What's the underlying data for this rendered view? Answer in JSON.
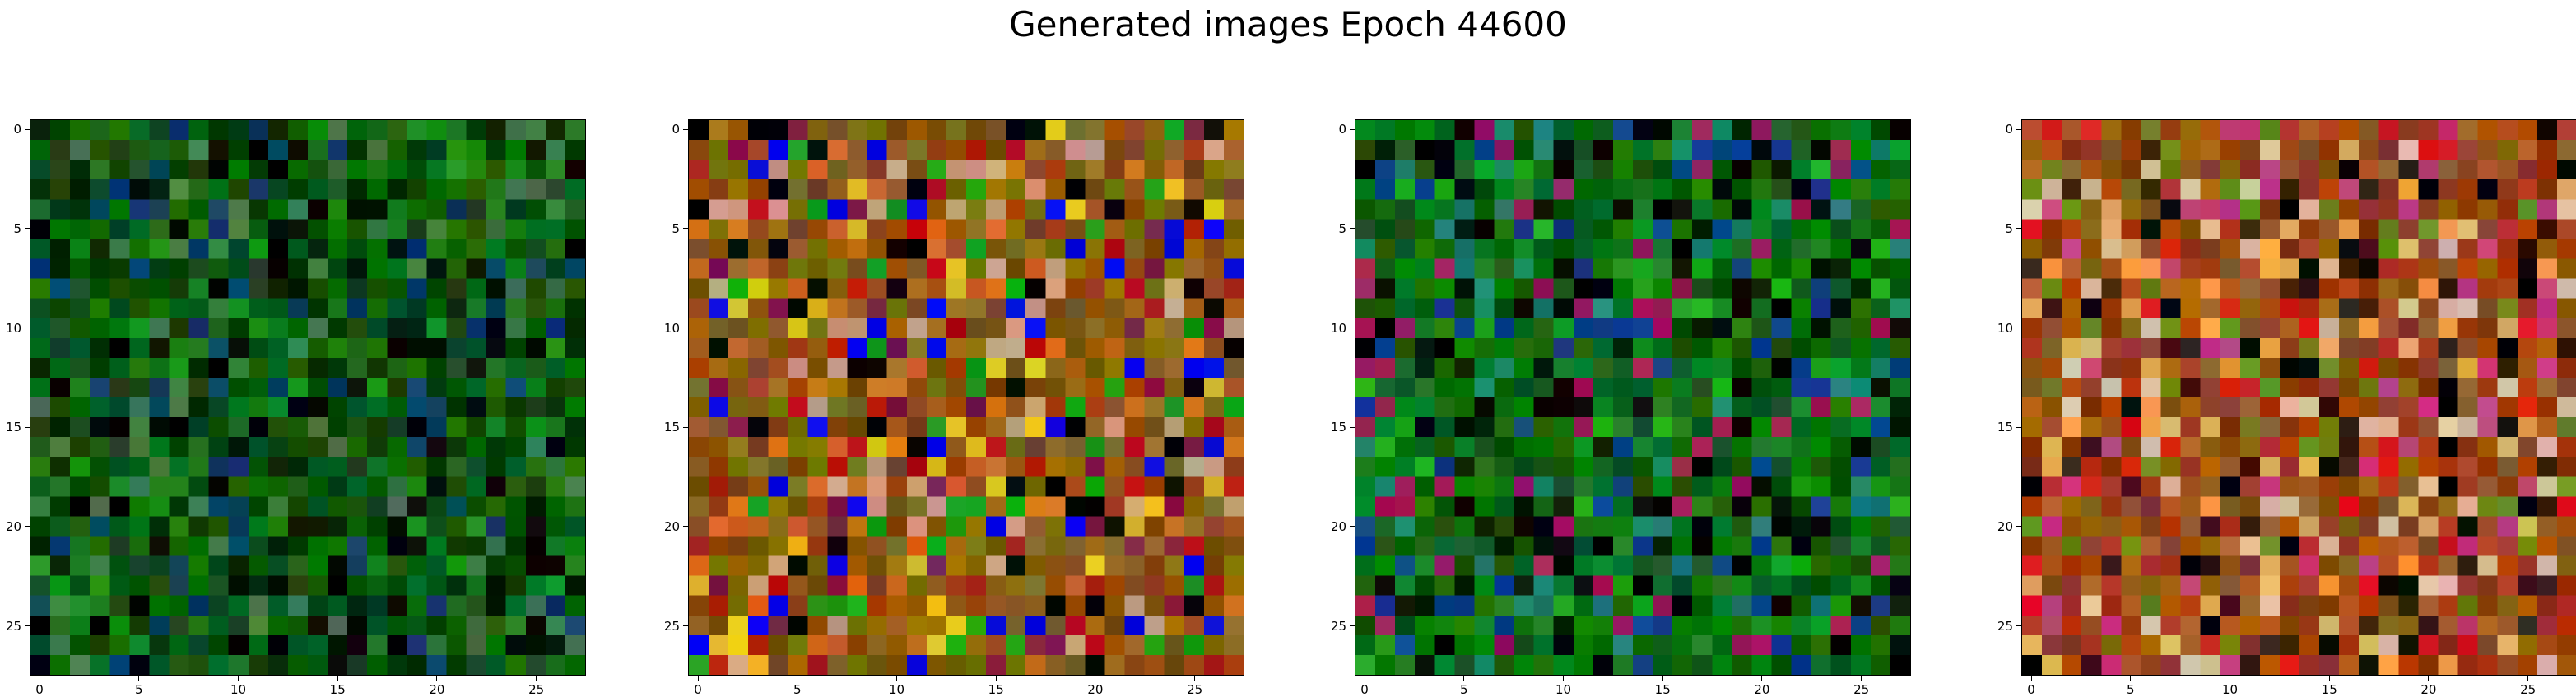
{
  "figure": {
    "title": "Generated images Epoch 44600"
  },
  "axes": {
    "x_ticks": [
      "0",
      "5",
      "10",
      "15",
      "20",
      "25"
    ],
    "y_ticks": [
      "0",
      "5",
      "10",
      "15",
      "20",
      "25"
    ],
    "grid_size": 28
  },
  "panels": [
    {
      "name": "generated-image-1",
      "palette": "dark-green",
      "base_color": "#0a5a0c",
      "accent_colors": [
        "#1a8a1a",
        "#002800",
        "#0b3d66",
        "#3e7a4a",
        "#000000"
      ]
    },
    {
      "name": "generated-image-2",
      "palette": "multicolor",
      "base_color": "#8a5a10",
      "accent_colors": [
        "#0000e6",
        "#e0c020",
        "#b41414",
        "#18a018",
        "#d06a20",
        "#7a1a4a",
        "#000000",
        "#c8a080"
      ]
    },
    {
      "name": "generated-image-3",
      "palette": "green-dark",
      "base_color": "#0b6a12",
      "accent_colors": [
        "#1aa51a",
        "#001200",
        "#0d3f8a",
        "#208070",
        "#9a1a5a",
        "#000000"
      ]
    },
    {
      "name": "generated-image-4",
      "palette": "warm-multicolor",
      "base_color": "#9a4a18",
      "accent_colors": [
        "#d41818",
        "#e0b060",
        "#6a8a1a",
        "#c23a7a",
        "#f0a040",
        "#3a1a10",
        "#d8c0a0",
        "#000000"
      ]
    }
  ]
}
